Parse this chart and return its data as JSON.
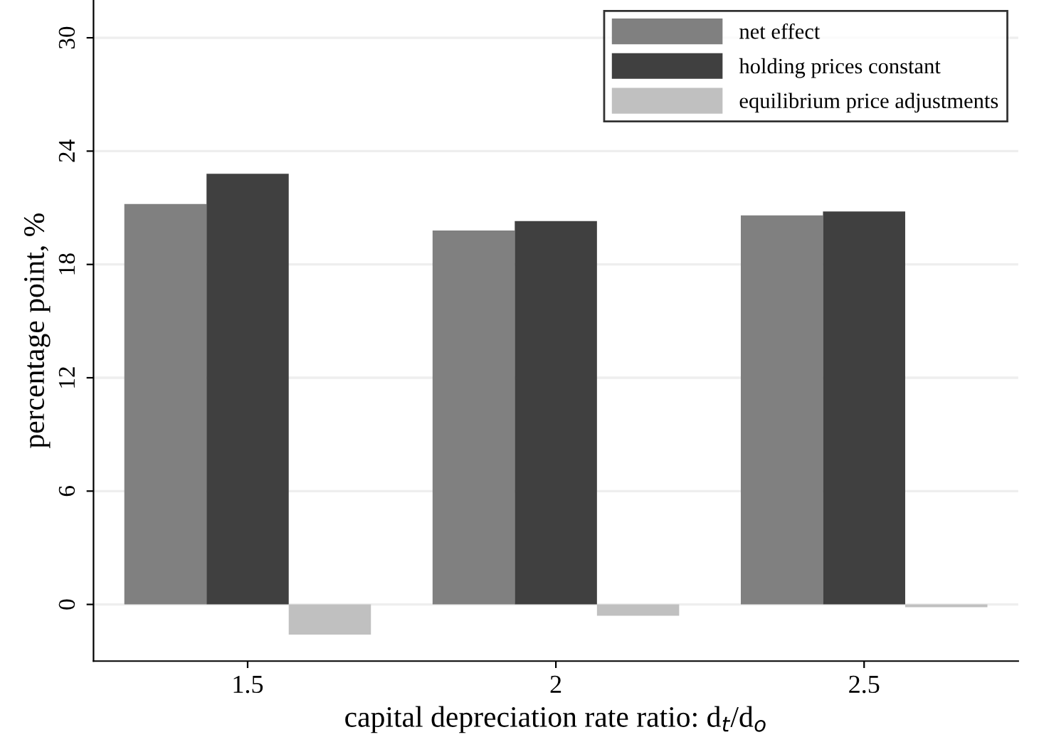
{
  "chart_data": {
    "type": "bar",
    "xlabel": "capital depreciation rate ratio: d$_{t}$/d$_{o}$",
    "ylabel": "percentage point, %",
    "categories": [
      "1.5",
      "2",
      "2.5"
    ],
    "series": [
      {
        "name": "net effect",
        "color": "#808080",
        "values": [
          21.2,
          19.8,
          20.6
        ]
      },
      {
        "name": "holding prices constant",
        "color": "#404040",
        "values": [
          22.8,
          20.3,
          20.8
        ]
      },
      {
        "name": "equilibrium price adjustments",
        "color": "#c0c0c0",
        "values": [
          -1.6,
          -0.6,
          -0.15
        ]
      }
    ],
    "ylim": [
      -3,
      32
    ],
    "yticks": [
      0,
      6,
      12,
      18,
      24,
      30
    ],
    "grid": "y",
    "legend": "top right"
  }
}
